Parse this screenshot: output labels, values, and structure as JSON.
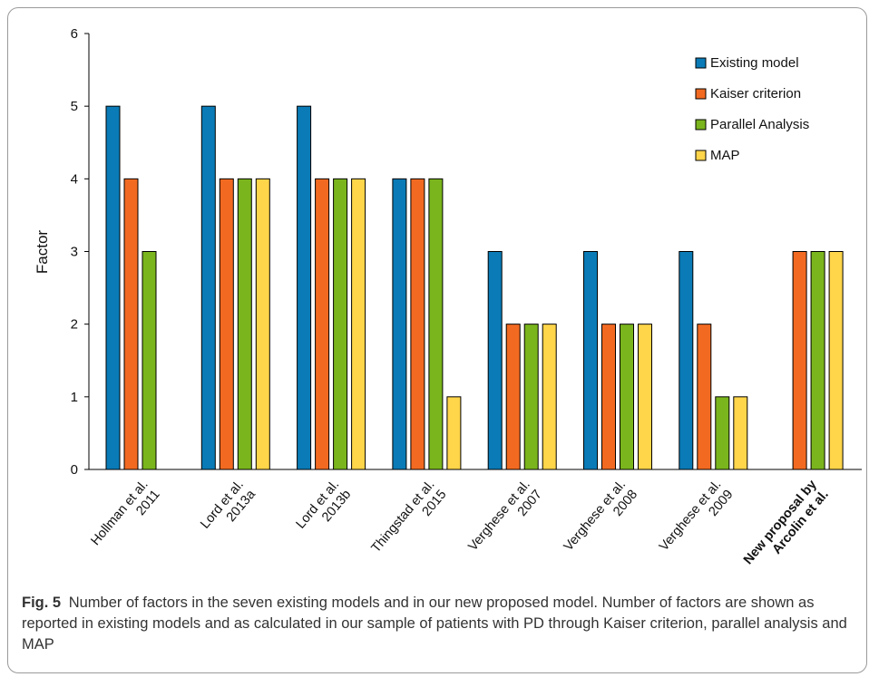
{
  "chart_data": {
    "type": "bar",
    "ylabel": "Factor",
    "xlabel": "",
    "ylim": [
      0,
      6
    ],
    "yticks": [
      0,
      1,
      2,
      3,
      4,
      5,
      6
    ],
    "grid": false,
    "legend_position": "top-right",
    "categories": [
      {
        "lines": [
          "Hollman et al.",
          "2011"
        ],
        "bold": false
      },
      {
        "lines": [
          "Lord et al.",
          "2013a"
        ],
        "bold": false
      },
      {
        "lines": [
          "Lord et al.",
          "2013b"
        ],
        "bold": false
      },
      {
        "lines": [
          "Thingstad et al.",
          "2015"
        ],
        "bold": false
      },
      {
        "lines": [
          "Verghese et al.",
          "2007"
        ],
        "bold": false
      },
      {
        "lines": [
          "Verghese et al.",
          "2008"
        ],
        "bold": false
      },
      {
        "lines": [
          "Verghese et al.",
          "2009"
        ],
        "bold": false
      },
      {
        "lines": [
          "New proposal by",
          "Arcolin et al."
        ],
        "bold": true
      }
    ],
    "series": [
      {
        "name": "Existing model",
        "color": "#0a7bb6",
        "values": [
          5,
          5,
          5,
          4,
          3,
          3,
          3,
          null
        ]
      },
      {
        "name": "Kaiser criterion",
        "color": "#f26a21",
        "values": [
          4,
          4,
          4,
          4,
          2,
          2,
          2,
          3
        ]
      },
      {
        "name": "Parallel Analysis",
        "color": "#7ab51d",
        "values": [
          3,
          4,
          4,
          4,
          2,
          2,
          1,
          3
        ]
      },
      {
        "name": "MAP",
        "color": "#ffd54a",
        "values": [
          null,
          4,
          4,
          1,
          2,
          2,
          1,
          3
        ]
      }
    ]
  },
  "caption": {
    "label": "Fig. 5",
    "text": "Number of factors in the seven existing models and in our new proposed model. Number of factors are shown as reported in existing models and as calculated in our sample of patients with PD through Kaiser criterion, parallel analysis and MAP"
  }
}
